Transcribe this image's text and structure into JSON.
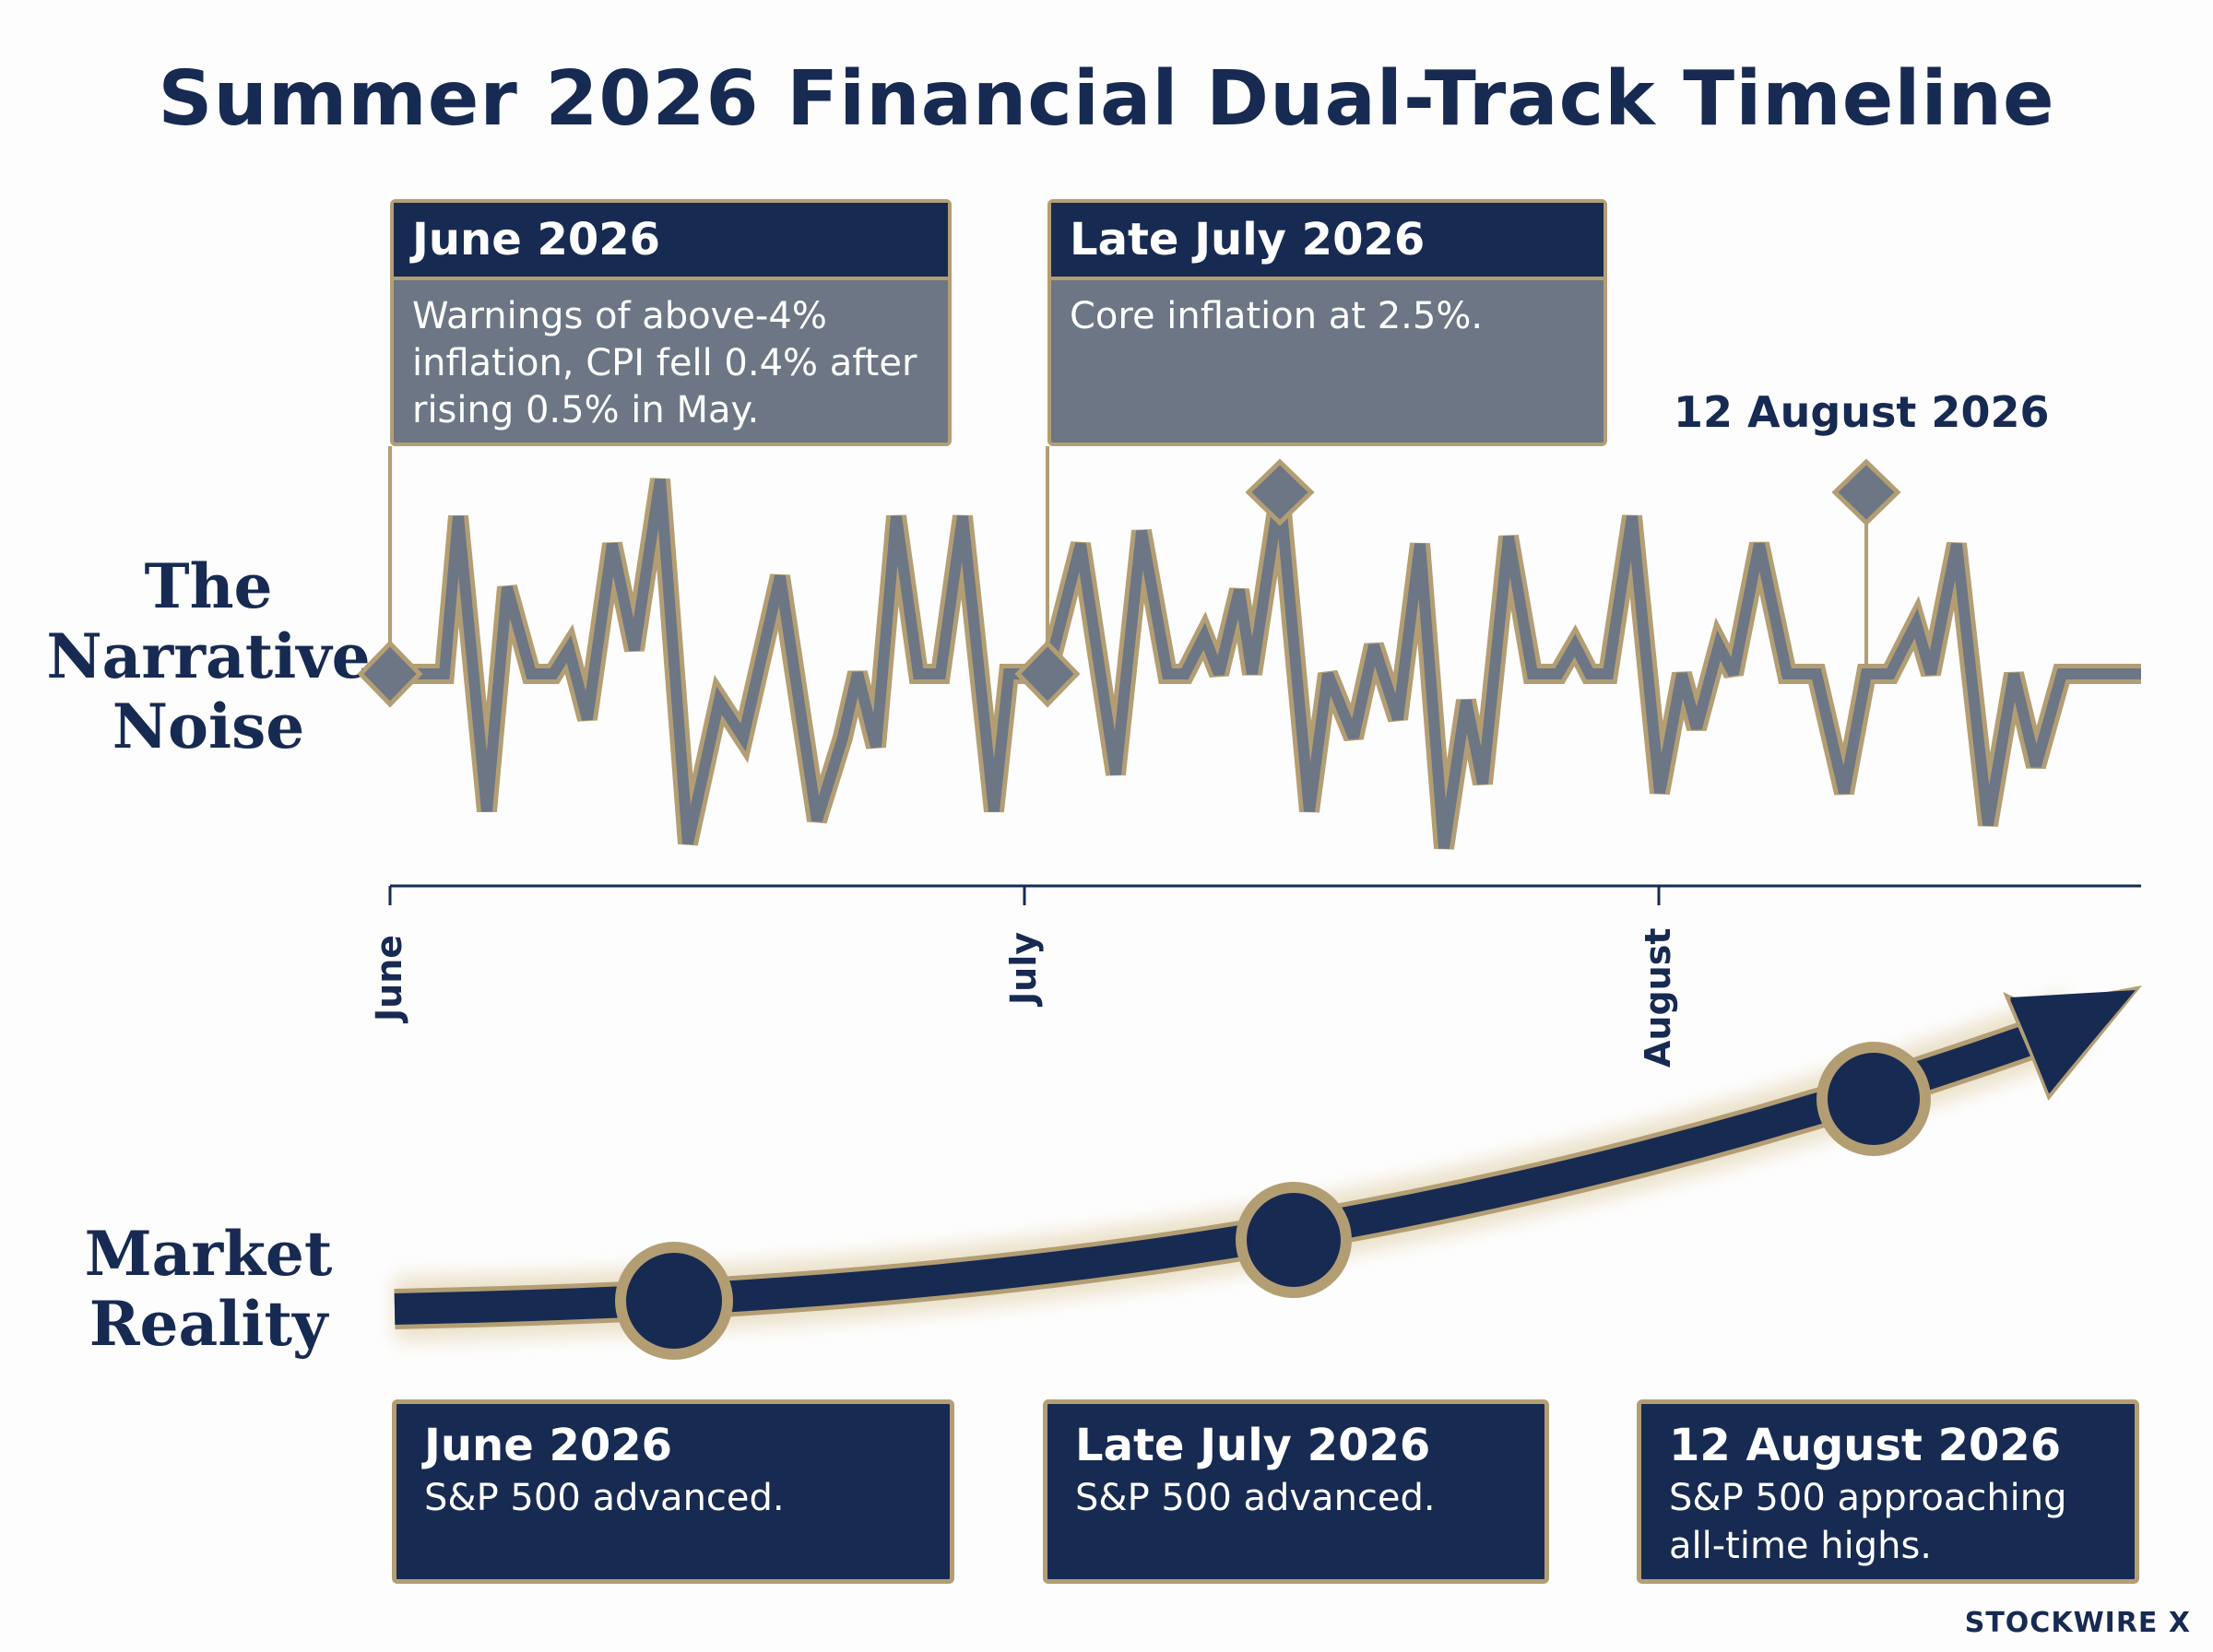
{
  "title": "Summer 2026 Financial Dual-Track Timeline",
  "tracks": {
    "noise_label": "The Narrative Noise",
    "reality_label": "Market Reality"
  },
  "noise_events": [
    {
      "heading": "June 2026",
      "text": "Warnings of above-4% inflation, CPI fell 0.4% after rising 0.5% in May."
    },
    {
      "heading": "Late July 2026",
      "text": "Core inflation at 2.5%."
    },
    {
      "heading": "12 August 2026",
      "text": ""
    }
  ],
  "axis": {
    "months": [
      "June",
      "July",
      "August"
    ]
  },
  "reality_events": [
    {
      "heading": "June 2026",
      "text": "S&P 500 advanced."
    },
    {
      "heading": "Late July 2026",
      "text": "S&P 500 advanced."
    },
    {
      "heading": "12 August 2026",
      "text": "S&P 500 approaching all-time highs."
    }
  ],
  "brand": "STOCKWIRE X",
  "colors": {
    "navy": "#172a52",
    "gold": "#b39e74",
    "slate": "#6c7685",
    "background": "#fdfdfd"
  }
}
